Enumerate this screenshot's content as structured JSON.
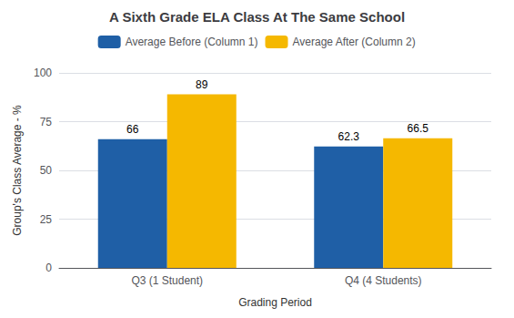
{
  "chart_data": {
    "type": "bar",
    "title": "A Sixth Grade ELA Class At The Same School",
    "xlabel": "Grading Period",
    "ylabel": "Group's Class Average - %",
    "categories": [
      "Q3 (1 Student)",
      "Q4 (4 Students)"
    ],
    "series": [
      {
        "name": "Average Before (Column 1)",
        "color": "#1F5FA6",
        "values": [
          66,
          62.3
        ]
      },
      {
        "name": "Average After (Column 2)",
        "color": "#F5B800",
        "values": [
          89,
          66.5
        ]
      }
    ],
    "ylim": [
      0,
      100
    ],
    "yticks": [
      0,
      25,
      50,
      75,
      100
    ],
    "grid": true,
    "legend": "top",
    "data_labels": true
  }
}
